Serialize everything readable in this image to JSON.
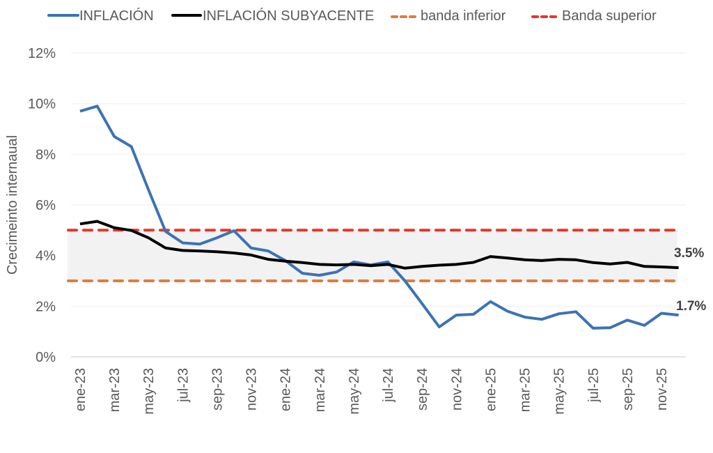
{
  "chart_data": {
    "type": "line",
    "title": "",
    "xlabel": "",
    "ylabel": "Crecimeinto internaual",
    "ylim": [
      0,
      12
    ],
    "yticks": [
      "0%",
      "2%",
      "4%",
      "6%",
      "8%",
      "10%",
      "12%"
    ],
    "ytick_values": [
      0,
      2,
      4,
      6,
      8,
      10,
      12
    ],
    "grid": true,
    "legend_position": "top",
    "x": [
      "ene-23",
      "feb-23",
      "mar-23",
      "abr-23",
      "may-23",
      "jun-23",
      "jul-23",
      "ago-23",
      "sep-23",
      "oct-23",
      "nov-23",
      "dic-23",
      "ene-24",
      "feb-24",
      "mar-24",
      "abr-24",
      "may-24",
      "jun-24",
      "jul-24",
      "ago-24",
      "sep-24",
      "oct-24",
      "nov-24",
      "dic-24",
      "ene-25",
      "feb-25",
      "mar-25",
      "abr-25",
      "may-25",
      "jun-25",
      "jul-25",
      "ago-25",
      "sep-25",
      "oct-25",
      "nov-25",
      "dic-25"
    ],
    "xtick_labels": [
      "ene-23",
      "mar-23",
      "may-23",
      "jul-23",
      "sep-23",
      "nov-23",
      "ene-24",
      "mar-24",
      "may-24",
      "jul-24",
      "sep-24",
      "nov-24",
      "ene-25",
      "mar-25",
      "may-25",
      "jul-25",
      "sep-25",
      "nov-25"
    ],
    "xtick_indices": [
      0,
      2,
      4,
      6,
      8,
      10,
      12,
      14,
      16,
      18,
      20,
      22,
      24,
      26,
      28,
      30,
      32,
      34
    ],
    "shaded_band": {
      "from": 3,
      "to": 5,
      "color": "#f2f2f2"
    },
    "series": [
      {
        "name": "INFLACIÓN",
        "color": "#3c73b4",
        "style": "solid",
        "values": [
          9.7,
          9.9,
          8.7,
          8.3,
          6.6,
          4.95,
          4.5,
          4.45,
          4.7,
          4.98,
          4.3,
          4.18,
          3.8,
          3.3,
          3.22,
          3.35,
          3.75,
          3.63,
          3.75,
          3.0,
          2.1,
          1.18,
          1.65,
          1.68,
          2.18,
          1.8,
          1.57,
          1.48,
          1.7,
          1.78,
          1.13,
          1.15,
          1.45,
          1.24,
          1.72,
          1.65
        ]
      },
      {
        "name": "INFLACIÓN SUBYACENTE",
        "color": "#000000",
        "style": "solid",
        "values": [
          5.25,
          5.35,
          5.1,
          4.99,
          4.7,
          4.3,
          4.2,
          4.18,
          4.15,
          4.1,
          4.02,
          3.85,
          3.78,
          3.72,
          3.65,
          3.63,
          3.65,
          3.6,
          3.65,
          3.5,
          3.57,
          3.62,
          3.65,
          3.73,
          3.96,
          3.9,
          3.83,
          3.8,
          3.85,
          3.83,
          3.72,
          3.67,
          3.73,
          3.57,
          3.55,
          3.52
        ]
      },
      {
        "name": "banda inferior",
        "color": "#e07c3c",
        "style": "dashed",
        "values": [
          3,
          3,
          3,
          3,
          3,
          3,
          3,
          3,
          3,
          3,
          3,
          3,
          3,
          3,
          3,
          3,
          3,
          3,
          3,
          3,
          3,
          3,
          3,
          3,
          3,
          3,
          3,
          3,
          3,
          3,
          3,
          3,
          3,
          3,
          3,
          3
        ]
      },
      {
        "name": "Banda superior",
        "color": "#e8362a",
        "style": "dashed",
        "values": [
          5,
          5,
          5,
          5,
          5,
          5,
          5,
          5,
          5,
          5,
          5,
          5,
          5,
          5,
          5,
          5,
          5,
          5,
          5,
          5,
          5,
          5,
          5,
          5,
          5,
          5,
          5,
          5,
          5,
          5,
          5,
          5,
          5,
          5,
          5,
          5
        ]
      }
    ],
    "annotations": [
      {
        "series": "INFLACIÓN SUBYACENTE",
        "text": "3.5%"
      },
      {
        "series": "INFLACIÓN",
        "text": "1.7%"
      }
    ]
  },
  "legend": {
    "items": [
      {
        "label": "INFLACIÓN",
        "color": "#3c73b4",
        "style": "solid"
      },
      {
        "label": "INFLACIÓN SUBYACENTE",
        "color": "#000000",
        "style": "solid"
      },
      {
        "label": "banda inferior",
        "color": "#e07c3c",
        "style": "dashed"
      },
      {
        "label": "Banda superior",
        "color": "#e8362a",
        "style": "dashed"
      }
    ]
  }
}
